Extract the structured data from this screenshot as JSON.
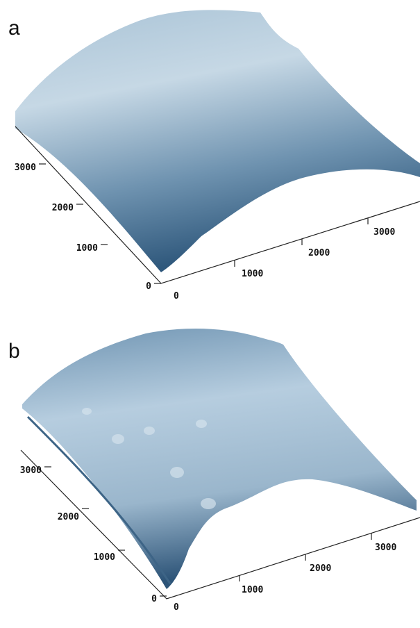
{
  "panels": [
    {
      "label": "a",
      "left_axis_ticks": [
        "3000",
        "2000",
        "1000",
        "0"
      ],
      "bottom_axis_ticks": [
        "0",
        "1000",
        "2000",
        "3000"
      ]
    },
    {
      "label": "b",
      "left_axis_ticks": [
        "3000",
        "2000",
        "1000",
        "0"
      ],
      "bottom_axis_ticks": [
        "0",
        "1000",
        "2000",
        "3000"
      ]
    }
  ]
}
